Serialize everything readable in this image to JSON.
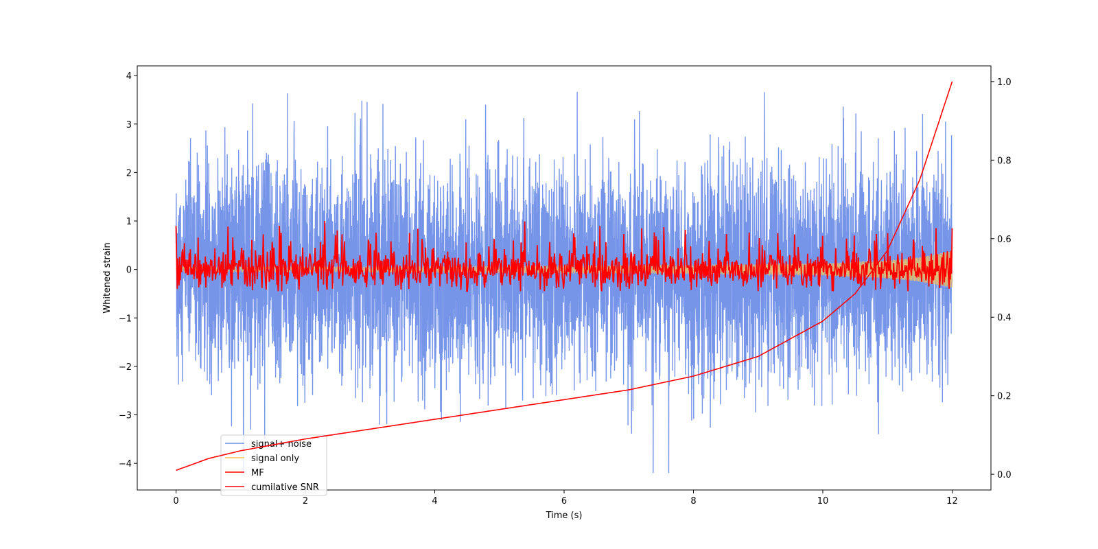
{
  "chart_data": {
    "type": "line",
    "title": "",
    "xlabel": "Time (s)",
    "ylabel": "Whitened strain",
    "y2label": "",
    "xlim": [
      -0.6,
      12.6
    ],
    "ylim": [
      -4.55,
      4.2
    ],
    "y2lim": [
      -0.04,
      1.04
    ],
    "xticks": [
      0,
      2,
      4,
      6,
      8,
      10,
      12
    ],
    "yticks": [
      -4,
      -3,
      -2,
      -1,
      0,
      1,
      2,
      3,
      4
    ],
    "y2ticks": [
      0.0,
      0.2,
      0.4,
      0.6,
      0.8,
      1.0
    ],
    "xtick_labels": [
      "0",
      "2",
      "4",
      "6",
      "8",
      "10",
      "12"
    ],
    "ytick_labels": [
      "−4",
      "−3",
      "−2",
      "−1",
      "0",
      "1",
      "2",
      "3",
      "4"
    ],
    "y2tick_labels": [
      "0.0",
      "0.2",
      "0.4",
      "0.6",
      "0.8",
      "1.0"
    ],
    "grid": false,
    "legend_position": "lower-left",
    "series": [
      {
        "name": "signal+ noise",
        "axis": "left",
        "color": "#6f8fe8",
        "description": "dense noisy trace, roughly N(0,1.1) with extremes between -4.2 and 3.8",
        "x_range": [
          0,
          12
        ],
        "y_range": [
          -4.2,
          3.8
        ]
      },
      {
        "name": "signal only",
        "axis": "left",
        "color": "#ffc34d",
        "description": "chirp growing in amplitude toward the end",
        "x": [
          0,
          2,
          4,
          6,
          8,
          10,
          11,
          11.5,
          12
        ],
        "amplitude": [
          0.05,
          0.05,
          0.06,
          0.07,
          0.08,
          0.12,
          0.18,
          0.25,
          0.38
        ]
      },
      {
        "name": "MF",
        "axis": "left",
        "color": "#ff0000",
        "description": "matched-filter output fluctuating around zero",
        "x": [
          0,
          0.02,
          0.5,
          1.6,
          2.3,
          4.5,
          6.55,
          7.2,
          9.3,
          11.0,
          12.0
        ],
        "y": [
          0.9,
          -0.4,
          0.1,
          0.9,
          1.0,
          -0.45,
          0.9,
          0.85,
          0.75,
          0.75,
          0.85
        ]
      },
      {
        "name": "cumilative SNR",
        "axis": "right",
        "color": "#ff0000",
        "x": [
          0,
          0.5,
          1,
          2,
          3,
          4,
          5,
          6,
          7,
          8,
          9,
          10,
          10.5,
          11,
          11.5,
          12
        ],
        "y": [
          0.01,
          0.04,
          0.06,
          0.09,
          0.115,
          0.14,
          0.165,
          0.19,
          0.215,
          0.25,
          0.3,
          0.39,
          0.46,
          0.57,
          0.75,
          1.0
        ]
      }
    ]
  }
}
